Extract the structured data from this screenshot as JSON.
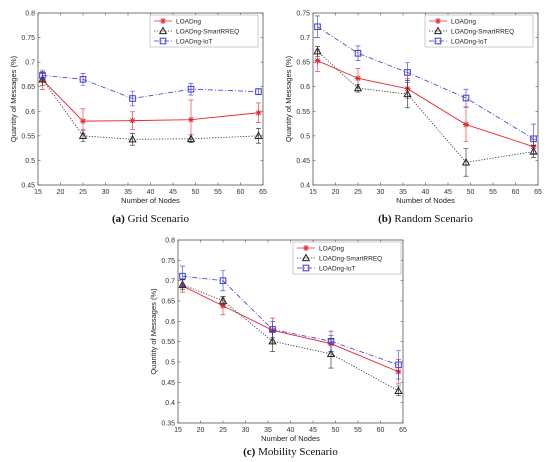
{
  "colors": {
    "loadng": "#e8282e",
    "smartrreq": "#222222",
    "iot": "#3a3ad6"
  },
  "chart_data": [
    {
      "type": "line",
      "caption_letter": "(a)",
      "caption_text": "Grid Scenario",
      "xlabel": "Number of Nodes",
      "ylabel": "Quantity of Messages (%)",
      "xlim": [
        15,
        65
      ],
      "ylim": [
        0.45,
        0.8
      ],
      "xticks": [
        "15",
        "20",
        "25",
        "30",
        "35",
        "40",
        "45",
        "50",
        "55",
        "60",
        "65"
      ],
      "yticks": [
        "0.45",
        "0.5",
        "0.55",
        "0.6",
        "0.65",
        "0.7",
        "0.75",
        "0.8"
      ],
      "xtick_values": [
        15,
        20,
        25,
        30,
        35,
        40,
        45,
        50,
        55,
        60,
        65
      ],
      "ytick_values": [
        0.45,
        0.5,
        0.55,
        0.6,
        0.65,
        0.7,
        0.75,
        0.8
      ],
      "legend_position": "top-right",
      "x": [
        16,
        25,
        36,
        49,
        64
      ],
      "series": [
        {
          "name": "LOADng",
          "values": [
            0.664,
            0.58,
            0.581,
            0.583,
            0.597
          ],
          "errors": [
            0.02,
            0.025,
            0.018,
            0.04,
            0.02
          ]
        },
        {
          "name": "LOADng-SmartRREQ",
          "values": [
            0.665,
            0.55,
            0.543,
            0.544,
            0.55
          ],
          "errors": [
            0.012,
            0.012,
            0.012,
            0.008,
            0.015
          ]
        },
        {
          "name": "LOADng-IoT",
          "values": [
            0.673,
            0.665,
            0.626,
            0.645,
            0.64
          ],
          "errors": [
            0.008,
            0.012,
            0.015,
            0.012,
            0.006
          ]
        }
      ]
    },
    {
      "type": "line",
      "caption_letter": "(b)",
      "caption_text": "Random Scenario",
      "xlabel": "Number of Nodes",
      "ylabel": "Quantity of Messages (%)",
      "xlim": [
        15,
        65
      ],
      "ylim": [
        0.4,
        0.75
      ],
      "xticks": [
        "15",
        "20",
        "25",
        "30",
        "35",
        "40",
        "45",
        "50",
        "55",
        "60",
        "65"
      ],
      "yticks": [
        "0.4",
        "0.45",
        "0.5",
        "0.55",
        "0.6",
        "0.65",
        "0.7",
        "0.75"
      ],
      "xtick_values": [
        15,
        20,
        25,
        30,
        35,
        40,
        45,
        50,
        55,
        60,
        65
      ],
      "ytick_values": [
        0.4,
        0.45,
        0.5,
        0.55,
        0.6,
        0.65,
        0.7,
        0.75
      ],
      "legend_position": "top-right",
      "x": [
        16,
        25,
        36,
        49,
        64
      ],
      "series": [
        {
          "name": "LOADng",
          "values": [
            0.653,
            0.617,
            0.596,
            0.523,
            0.478
          ],
          "errors": [
            0.022,
            0.02,
            0.02,
            0.035,
            0.015
          ]
        },
        {
          "name": "LOADng-SmartRREQ",
          "values": [
            0.672,
            0.597,
            0.585,
            0.446,
            0.468
          ],
          "errors": [
            0.01,
            0.008,
            0.028,
            0.028,
            0.012
          ]
        },
        {
          "name": "LOADng-IoT",
          "values": [
            0.722,
            0.668,
            0.629,
            0.577,
            0.494
          ],
          "errors": [
            0.022,
            0.015,
            0.02,
            0.018,
            0.03
          ]
        }
      ]
    },
    {
      "type": "line",
      "caption_letter": "(c)",
      "caption_text": "Mobility Scenario",
      "xlabel": "Number of Nodes",
      "ylabel": "Quantity of Messages (%)",
      "xlim": [
        15,
        65
      ],
      "ylim": [
        0.35,
        0.8
      ],
      "xticks": [
        "15",
        "20",
        "25",
        "30",
        "35",
        "40",
        "45",
        "50",
        "55",
        "60",
        "65"
      ],
      "yticks": [
        "0.35",
        "0.4",
        "0.45",
        "0.5",
        "0.55",
        "0.6",
        "0.65",
        "0.7",
        "0.75",
        "0.8"
      ],
      "xtick_values": [
        15,
        20,
        25,
        30,
        35,
        40,
        45,
        50,
        55,
        60,
        65
      ],
      "ytick_values": [
        0.35,
        0.4,
        0.45,
        0.5,
        0.55,
        0.6,
        0.65,
        0.7,
        0.75,
        0.8
      ],
      "legend_position": "top-right",
      "x": [
        16,
        25,
        36,
        49,
        64
      ],
      "series": [
        {
          "name": "LOADng",
          "values": [
            0.687,
            0.638,
            0.578,
            0.545,
            0.476
          ],
          "errors": [
            0.015,
            0.022,
            0.03,
            0.02,
            0.03
          ]
        },
        {
          "name": "LOADng-SmartRREQ",
          "values": [
            0.69,
            0.651,
            0.551,
            0.52,
            0.429
          ],
          "errors": [
            0.012,
            0.01,
            0.025,
            0.035,
            0.012
          ]
        },
        {
          "name": "LOADng-IoT",
          "values": [
            0.711,
            0.7,
            0.58,
            0.551,
            0.493
          ],
          "errors": [
            0.025,
            0.025,
            0.02,
            0.025,
            0.035
          ]
        }
      ]
    }
  ]
}
